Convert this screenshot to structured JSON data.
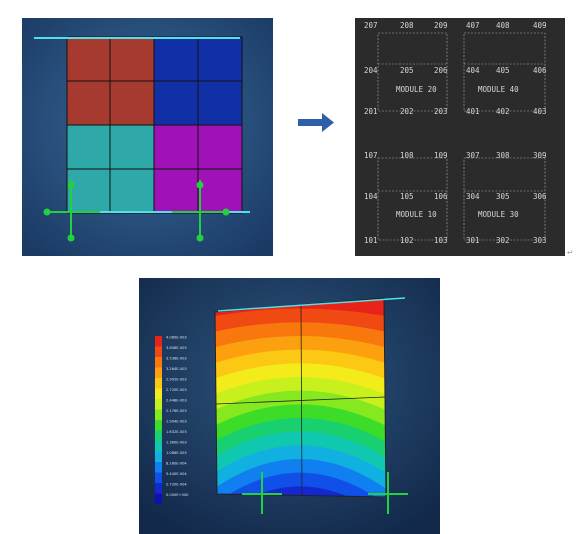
{
  "panel": {
    "rows": [
      [
        "207",
        "208",
        "209",
        "407",
        "408",
        "409"
      ],
      [
        "204",
        "205",
        "206",
        "404",
        "405",
        "406"
      ],
      [
        "201",
        "202",
        "203",
        "401",
        "402",
        "403"
      ],
      [
        "107",
        "108",
        "109",
        "307",
        "308",
        "309"
      ],
      [
        "104",
        "105",
        "106",
        "304",
        "305",
        "306"
      ],
      [
        "101",
        "102",
        "103",
        "301",
        "302",
        "303"
      ]
    ],
    "modules": [
      "MODULE 20",
      "MODULE 40",
      "MODULE 10",
      "MODULE 30"
    ]
  },
  "legend": {
    "labels": [
      "4.080E-003",
      "3.808E-003",
      "3.536E-003",
      "3.264E-003",
      "2.992E-003",
      "2.720E-003",
      "2.448E-003",
      "2.176E-003",
      "1.904E-003",
      "1.632E-003",
      "1.360E-003",
      "1.088E-003",
      "8.160E-004",
      "5.440E-004",
      "2.720E-004",
      "0.000E+000"
    ]
  }
}
